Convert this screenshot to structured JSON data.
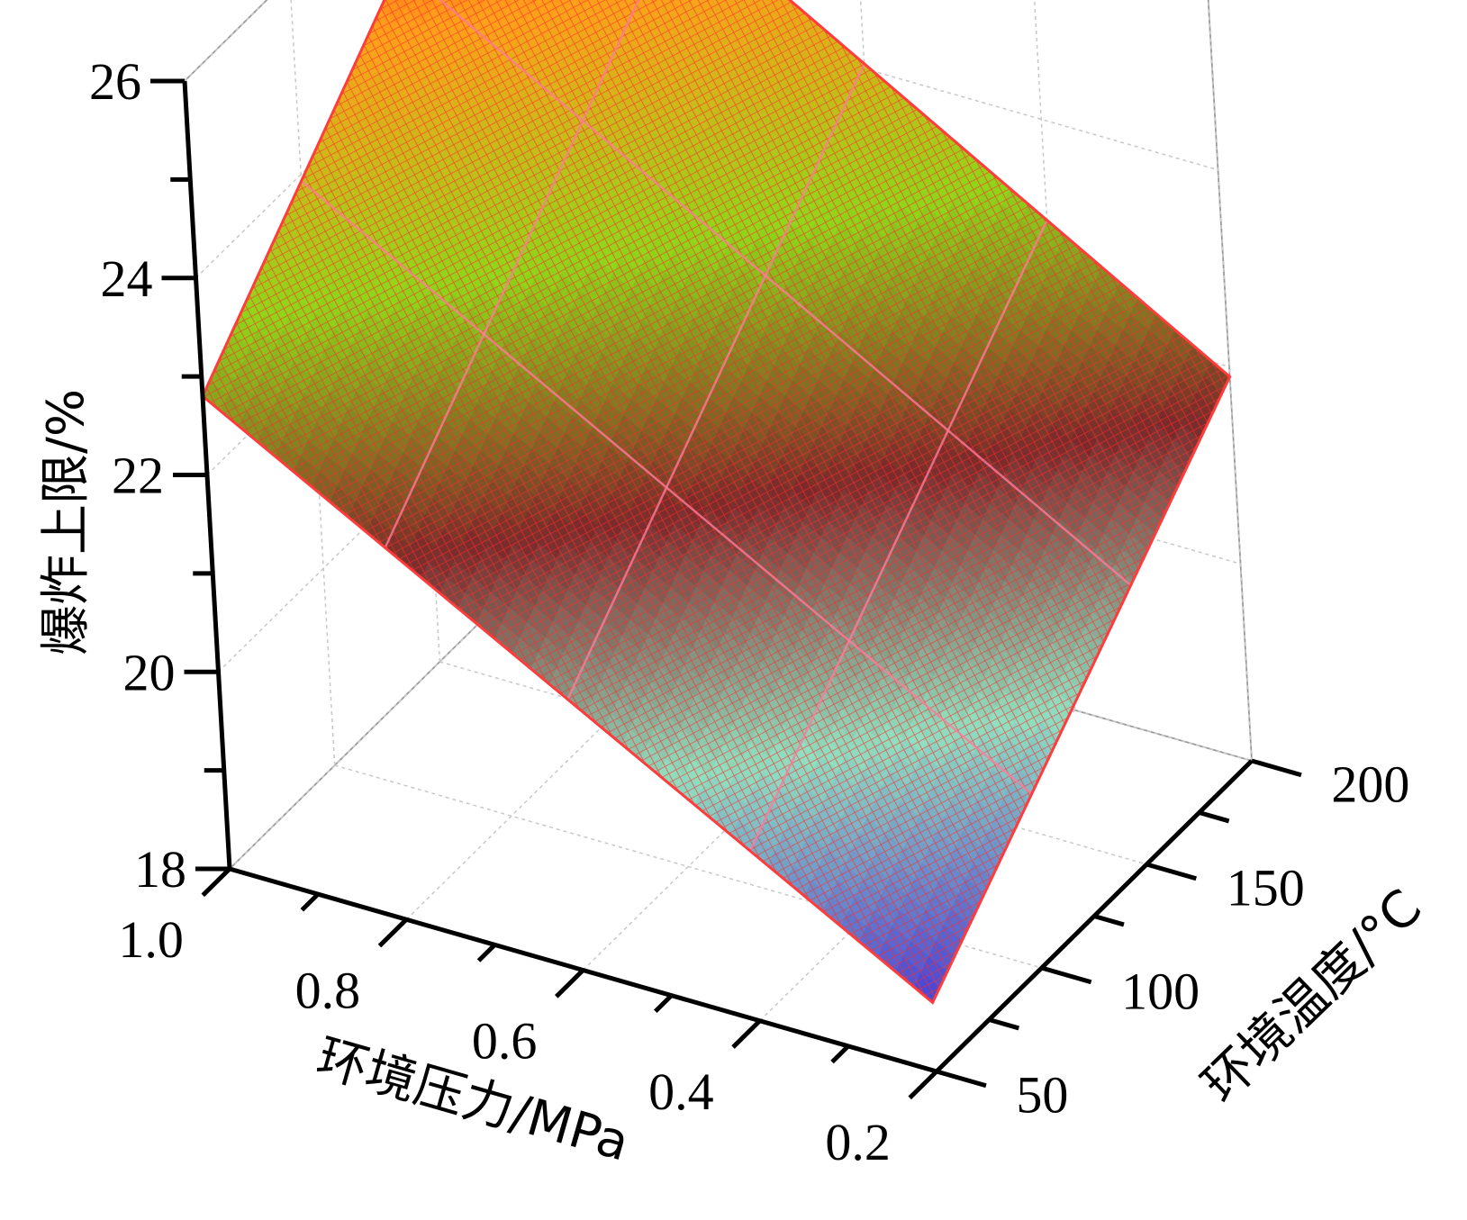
{
  "chart_data": {
    "type": "surface3d",
    "title": "",
    "xlabel": "环境压力/MPa",
    "ylabel": "环境温度/°C",
    "zlabel": "爆炸上限/%",
    "x_ticks": [
      1.0,
      0.8,
      0.6,
      0.4,
      0.2
    ],
    "x_tick_labels": [
      "1.0",
      "0.8",
      "0.6",
      "0.4",
      "0.2"
    ],
    "y_ticks": [
      50,
      100,
      150,
      200
    ],
    "y_tick_labels": [
      "50",
      "100",
      "150",
      "200"
    ],
    "z_ticks": [
      18,
      20,
      22,
      24,
      26
    ],
    "z_tick_labels": [
      "18",
      "20",
      "22",
      "24",
      "26"
    ],
    "xlim": [
      0.2,
      1.0
    ],
    "ylim": [
      50,
      200
    ],
    "zlim": [
      18,
      26
    ],
    "grid": true,
    "colormap": [
      "#4a3fd4",
      "#8fe0c0",
      "#7a2a2a",
      "#8fd61a",
      "#ffa01a",
      "#ff1a1a"
    ],
    "surface_corners": [
      {
        "pressure": 1.0,
        "temperature": 50,
        "value": 22.8
      },
      {
        "pressure": 0.2,
        "temperature": 50,
        "value": 18.7
      },
      {
        "pressure": 1.0,
        "temperature": 200,
        "value": 26.2
      },
      {
        "pressure": 0.2,
        "temperature": 200,
        "value": 21.9
      }
    ]
  }
}
